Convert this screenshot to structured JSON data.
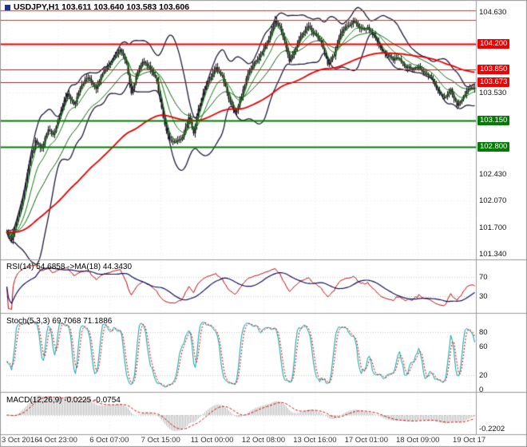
{
  "header": {
    "title": "USDJPY,H1 103.611 103.640 103.583 103.606"
  },
  "chart_data": {
    "type": "candlestick",
    "symbol": "USDJPY",
    "timeframe": "H1",
    "quote": {
      "open": 103.611,
      "high": 103.64,
      "low": 103.583,
      "close": 103.606
    },
    "x_axis": {
      "labels": [
        "3 Oct 2016",
        "4 Oct 23:00",
        "6 Oct 07:00",
        "7 Oct 15:00",
        "11 Oct 00:00",
        "12 Oct 08:00",
        "13 Oct 16:00",
        "17 Oct 01:00",
        "18 Oct 09:00",
        "19 Oct 17"
      ]
    },
    "main_panel": {
      "y_min": 101.3,
      "y_max": 104.75,
      "y_ticks": [
        {
          "label": "104.630",
          "value": 104.63
        },
        {
          "label": "103.530",
          "value": 103.53
        },
        {
          "label": "102.430",
          "value": 102.43
        },
        {
          "label": "102.070",
          "value": 102.07
        },
        {
          "label": "101.700",
          "value": 101.7
        },
        {
          "label": "101.340",
          "value": 101.34
        }
      ],
      "levels": [
        {
          "value": 104.655,
          "color": "#ff1a1a",
          "width": 1
        },
        {
          "value": 104.525,
          "color": "#ff1a1a",
          "width": 1
        },
        {
          "value": 104.2,
          "color": "#f00000",
          "width": 2,
          "label": "104.200"
        },
        {
          "value": 103.85,
          "color": "#f00000",
          "width": 1,
          "label": "103.850"
        },
        {
          "value": 103.673,
          "color": "#f00000",
          "width": 1,
          "label": "103.673"
        },
        {
          "value": 103.15,
          "color": "#067a06",
          "width": 2,
          "label": "103.150"
        },
        {
          "value": 102.8,
          "color": "#067a06",
          "width": 2,
          "label": "102.800"
        }
      ],
      "bars_visible": 294,
      "close_path": [
        [
          0,
          101.62
        ],
        [
          3,
          101.5
        ],
        [
          6,
          101.78
        ],
        [
          10,
          102.1
        ],
        [
          14,
          102.55
        ],
        [
          18,
          102.9
        ],
        [
          22,
          102.8
        ],
        [
          26,
          103.0
        ],
        [
          29,
          102.95
        ],
        [
          34,
          103.3
        ],
        [
          38,
          103.5
        ],
        [
          42,
          103.4
        ],
        [
          46,
          103.6
        ],
        [
          51,
          103.75
        ],
        [
          56,
          103.6
        ],
        [
          61,
          103.8
        ],
        [
          66,
          104.0
        ],
        [
          71,
          104.1
        ],
        [
          75,
          103.95
        ],
        [
          78,
          103.55
        ],
        [
          81,
          103.75
        ],
        [
          85,
          103.95
        ],
        [
          89,
          103.9
        ],
        [
          94,
          103.65
        ],
        [
          98,
          103.2
        ],
        [
          102,
          102.9
        ],
        [
          106,
          102.85
        ],
        [
          110,
          102.95
        ],
        [
          114,
          103.2
        ],
        [
          117,
          102.95
        ],
        [
          120,
          103.3
        ],
        [
          124,
          103.6
        ],
        [
          127,
          103.7
        ],
        [
          131,
          103.88
        ],
        [
          135,
          103.8
        ],
        [
          139,
          103.45
        ],
        [
          143,
          103.25
        ],
        [
          147,
          103.5
        ],
        [
          151,
          103.75
        ],
        [
          155,
          103.95
        ],
        [
          160,
          104.1
        ],
        [
          164,
          104.25
        ],
        [
          168,
          104.55
        ],
        [
          171,
          104.45
        ],
        [
          174,
          104.2
        ],
        [
          177,
          103.95
        ],
        [
          181,
          104.15
        ],
        [
          185,
          104.3
        ],
        [
          189,
          104.45
        ],
        [
          193,
          104.35
        ],
        [
          197,
          104.2
        ],
        [
          201,
          103.95
        ],
        [
          205,
          104.05
        ],
        [
          209,
          104.3
        ],
        [
          213,
          104.45
        ],
        [
          217,
          104.5
        ],
        [
          221,
          104.4
        ],
        [
          226,
          104.45
        ],
        [
          230,
          104.3
        ],
        [
          234,
          104.15
        ],
        [
          238,
          104.05
        ],
        [
          242,
          103.95
        ],
        [
          246,
          104.0
        ],
        [
          250,
          103.9
        ],
        [
          254,
          103.85
        ],
        [
          258,
          103.9
        ],
        [
          262,
          103.8
        ],
        [
          266,
          103.7
        ],
        [
          270,
          103.55
        ],
        [
          274,
          103.45
        ],
        [
          278,
          103.55
        ],
        [
          282,
          103.4
        ],
        [
          286,
          103.5
        ],
        [
          290,
          103.6
        ],
        [
          293,
          103.61
        ]
      ],
      "overlays": {
        "bollinger": {
          "period": 20,
          "deviation": 2,
          "color": "#1c1c3a"
        },
        "ma_fast": {
          "periods": [
            4,
            12,
            30
          ],
          "colors": [
            "#0b8a0b",
            "#0b7a0b",
            "#085c08"
          ]
        },
        "ma_slow": {
          "period": 110,
          "color": "#e80000"
        }
      }
    },
    "indicator_panels": [
      {
        "id": "rsi",
        "title": "RSI(14) 54.6858 ->MA(18) 44.3430",
        "period": 14,
        "ma_period": 18,
        "value": 54.6858,
        "ma_value": 44.343,
        "range": [
          0,
          100
        ],
        "levels": [
          70,
          30
        ],
        "y_ticks": [
          {
            "label": "70",
            "value": 70
          },
          {
            "label": "30",
            "value": 30
          }
        ],
        "line_color": "#c00000",
        "ma_color": "#101060"
      },
      {
        "id": "stoch",
        "title": "Stoch(5,3,3) 69.7068 71.1886",
        "k_value": 69.7068,
        "d_value": 71.1886,
        "range": [
          0,
          100
        ],
        "levels": [
          80,
          20
        ],
        "y_ticks": [
          {
            "label": "80",
            "value": 80
          },
          {
            "label": "60",
            "value": 60
          },
          {
            "label": "20",
            "value": 20
          },
          {
            "label": "0",
            "value": 0
          }
        ],
        "k_color": "#00a3a3",
        "d_color": "#d40000"
      },
      {
        "id": "macd",
        "title": "MACD(12,26,9) -0.0225 -0.0754",
        "value": -0.0225,
        "signal_value": -0.0754,
        "range": [
          -0.29,
          0.29
        ],
        "levels": [
          0
        ],
        "y_ticks": [
          {
            "label": "-0.2202",
            "value": -0.2202
          }
        ],
        "hist_color": "#b9b9b9",
        "signal_color": "#d40000"
      }
    ]
  },
  "colors": {
    "background": "#ffffff",
    "border": "#9a9a9a",
    "grid": "#ededed",
    "level_grid": "#c8c8c8",
    "candle": "#101010",
    "axis_text": "#111111",
    "x_label": "#3a3a3a",
    "bullet": "#26317d"
  }
}
